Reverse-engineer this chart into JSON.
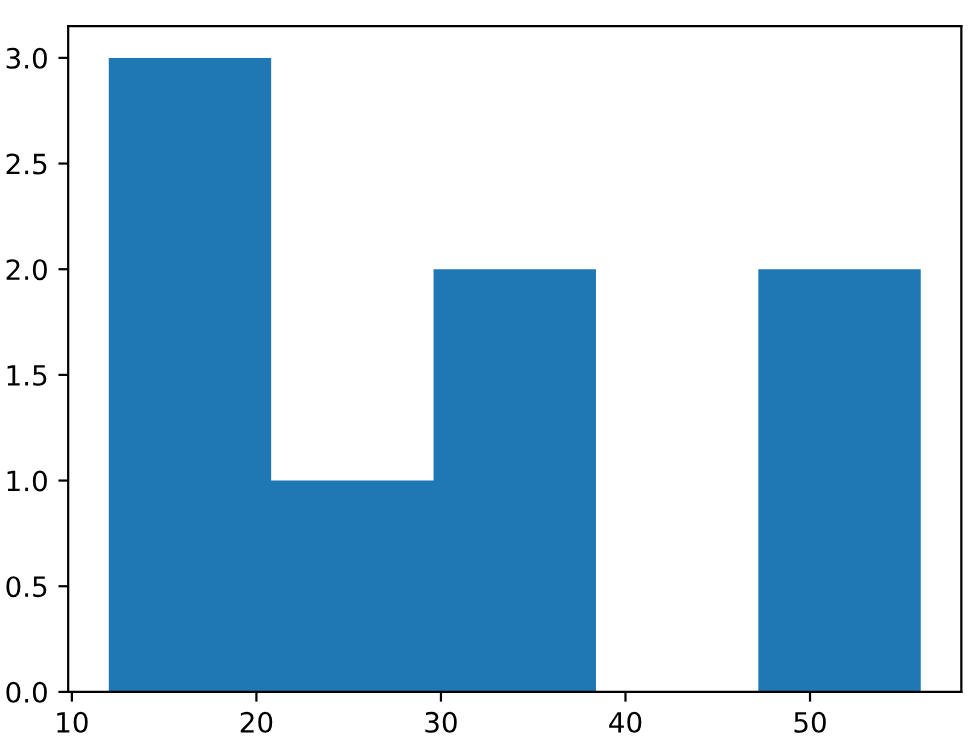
{
  "chart_data": {
    "type": "histogram",
    "bins": [
      12,
      20.8,
      29.6,
      38.4,
      47.2,
      56
    ],
    "values": [
      3,
      1,
      2,
      0,
      2
    ],
    "color": "#1f77b4",
    "xlim": [
      9.8,
      58.2
    ],
    "xticks": [
      10,
      20,
      30,
      40,
      50
    ],
    "ylim": [
      0,
      3.15
    ],
    "yticks": [
      {
        "value": 0,
        "label": "0.0"
      },
      0.5,
      {
        "value": 1,
        "label": "1.0"
      },
      1.5,
      {
        "value": 2,
        "label": "2.0"
      },
      2.5,
      {
        "value": 3,
        "label": "3.0"
      }
    ],
    "grid": false
  }
}
